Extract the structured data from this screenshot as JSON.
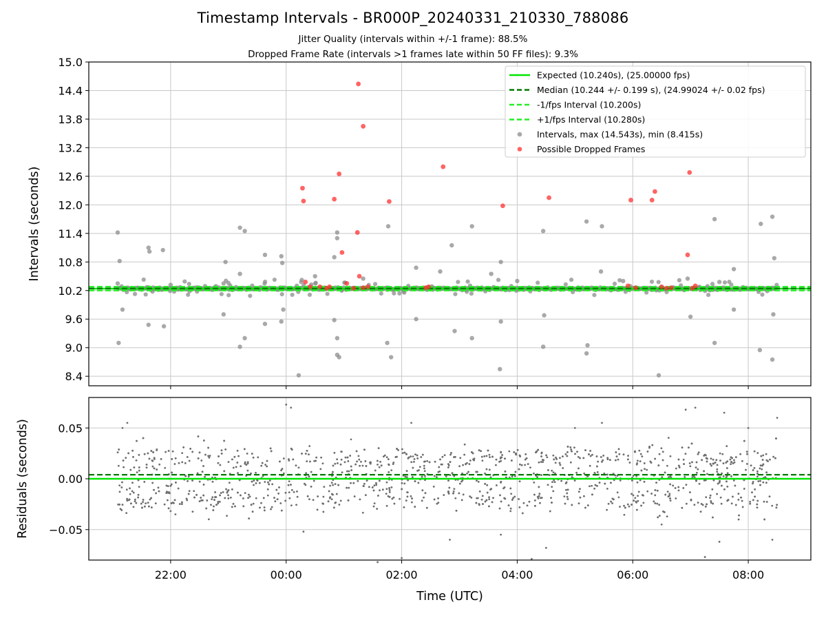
{
  "figure": {
    "title": "Timestamp Intervals - BR000P_20240331_210330_788086",
    "subtitle_1": "Jitter Quality (intervals within +/-1 frame): 88.5%",
    "subtitle_2": "Dropped Frame Rate (intervals >1 frames late within 50 FF files): 9.3%"
  },
  "colors": {
    "expected": "#00e600",
    "median": "#007a00",
    "interval_bounds": "#22ee22",
    "intervals": "#8c8c8c",
    "dropped": "#ff3030",
    "residuals": "#6e6e6e",
    "grid": "#c8c8c8"
  },
  "chart_data": [
    {
      "type": "scatter",
      "ylabel": "Intervals (seconds)",
      "ylim": [
        8.2,
        15.0
      ],
      "yticks": [
        "8.4",
        "9.0",
        "9.6",
        "10.2",
        "10.8",
        "11.4",
        "12.0",
        "12.6",
        "13.2",
        "13.8",
        "14.4",
        "15.0"
      ],
      "xlim": [
        "20:35",
        "09:05"
      ],
      "grid": true,
      "legend_placement": "top-right",
      "lines": [
        {
          "name": "Expected (10.240s), (25.00000 fps)",
          "y": 10.24,
          "style": "solid"
        },
        {
          "name": "Median (10.244 +/- 0.199 s), (24.99024 +/- 0.02 fps)",
          "y": 10.244,
          "style": "dashed"
        },
        {
          "name": "-1/fps Interval (10.200s)",
          "y": 10.2,
          "style": "dashed"
        },
        {
          "name": "+1/fps Interval (10.280s)",
          "y": 10.28,
          "style": "dashed"
        }
      ],
      "series": [
        {
          "name": "Intervals, max (14.543s), min (8.415s)",
          "points": [
            [
              "21:05",
              11.42
            ],
            [
              "21:07",
              10.82
            ],
            [
              "21:06",
              9.1
            ],
            [
              "21:10",
              9.8
            ],
            [
              "21:37",
              11.1
            ],
            [
              "21:38",
              11.02
            ],
            [
              "21:37",
              9.48
            ],
            [
              "21:52",
              11.05
            ],
            [
              "21:53",
              9.45
            ],
            [
              "22:55",
              10.35
            ],
            [
              "22:57",
              10.8
            ],
            [
              "22:55",
              9.7
            ],
            [
              "23:12",
              11.52
            ],
            [
              "23:17",
              11.45
            ],
            [
              "23:12",
              10.55
            ],
            [
              "23:12",
              9.02
            ],
            [
              "23:17",
              9.2
            ],
            [
              "23:38",
              10.95
            ],
            [
              "23:38",
              9.5
            ],
            [
              "23:55",
              10.92
            ],
            [
              "23:56",
              10.78
            ],
            [
              "23:55",
              9.55
            ],
            [
              "23:57",
              9.8
            ],
            [
              "00:13",
              8.42
            ],
            [
              "00:53",
              11.42
            ],
            [
              "00:53",
              11.3
            ],
            [
              "00:50",
              10.9
            ],
            [
              "00:50",
              9.58
            ],
            [
              "00:53",
              9.2
            ],
            [
              "00:53",
              8.85
            ],
            [
              "00:55",
              8.8
            ],
            [
              "01:46",
              11.55
            ],
            [
              "01:45",
              9.1
            ],
            [
              "01:49",
              8.8
            ],
            [
              "02:15",
              10.68
            ],
            [
              "02:15",
              9.6
            ],
            [
              "02:52",
              11.15
            ],
            [
              "02:55",
              9.35
            ],
            [
              "03:13",
              11.55
            ],
            [
              "03:13",
              9.2
            ],
            [
              "03:33",
              10.55
            ],
            [
              "03:43",
              10.8
            ],
            [
              "03:43",
              9.55
            ],
            [
              "03:42",
              8.55
            ],
            [
              "04:27",
              11.45
            ],
            [
              "04:28",
              9.68
            ],
            [
              "04:27",
              9.02
            ],
            [
              "05:12",
              11.65
            ],
            [
              "05:13",
              9.05
            ],
            [
              "05:12",
              8.88
            ],
            [
              "05:28",
              11.55
            ],
            [
              "05:27",
              10.6
            ],
            [
              "06:27",
              8.42
            ],
            [
              "06:57",
              10.45
            ],
            [
              "07:00",
              9.65
            ],
            [
              "07:25",
              11.7
            ],
            [
              "07:25",
              9.1
            ],
            [
              "07:45",
              10.65
            ],
            [
              "07:45",
              9.8
            ],
            [
              "08:13",
              11.6
            ],
            [
              "08:12",
              8.95
            ],
            [
              "08:25",
              11.75
            ],
            [
              "08:27",
              10.88
            ],
            [
              "08:26",
              9.7
            ],
            [
              "08:25",
              8.75
            ],
            [
              "21:05",
              10.35
            ],
            [
              "22:00",
              10.32
            ],
            [
              "23:00",
              10.36
            ],
            [
              "00:30",
              10.5
            ],
            [
              "01:20",
              10.45
            ],
            [
              "02:40",
              10.6
            ],
            [
              "04:00",
              10.4
            ],
            [
              "05:50",
              10.4
            ],
            [
              "07:30",
              10.38
            ]
          ]
        },
        {
          "name": "Possible Dropped Frames",
          "points": [
            [
              "00:17",
              12.35
            ],
            [
              "00:18",
              12.08
            ],
            [
              "00:50",
              12.12
            ],
            [
              "00:55",
              12.65
            ],
            [
              "00:58",
              11.0
            ],
            [
              "01:15",
              14.54
            ],
            [
              "01:20",
              13.65
            ],
            [
              "01:14",
              11.42
            ],
            [
              "01:47",
              12.07
            ],
            [
              "02:43",
              12.8
            ],
            [
              "03:45",
              11.98
            ],
            [
              "04:33",
              12.15
            ],
            [
              "05:58",
              12.1
            ],
            [
              "06:20",
              12.1
            ],
            [
              "06:23",
              12.28
            ],
            [
              "06:59",
              12.68
            ],
            [
              "06:57",
              10.95
            ],
            [
              "01:16",
              10.5
            ],
            [
              "01:03",
              10.35
            ],
            [
              "00:20",
              10.38
            ],
            [
              "00:25",
              10.28
            ],
            [
              "00:35",
              10.28
            ],
            [
              "00:42",
              10.25
            ],
            [
              "00:45",
              10.28
            ],
            [
              "01:10",
              10.25
            ],
            [
              "01:20",
              10.26
            ],
            [
              "01:25",
              10.28
            ],
            [
              "02:25",
              10.26
            ],
            [
              "02:28",
              10.28
            ],
            [
              "05:55",
              10.3
            ],
            [
              "06:03",
              10.26
            ],
            [
              "06:30",
              10.28
            ],
            [
              "06:35",
              10.25
            ],
            [
              "06:40",
              10.26
            ],
            [
              "07:02",
              10.25
            ],
            [
              "07:05",
              10.3
            ]
          ]
        }
      ]
    },
    {
      "type": "scatter",
      "xlabel": "Time (UTC)",
      "ylabel": "Residuals (seconds)",
      "ylim": [
        -0.08,
        0.08
      ],
      "yticks": [
        "−0.05",
        "0.00",
        "0.05"
      ],
      "xticks": [
        "22:00",
        "00:00",
        "02:00",
        "04:00",
        "06:00",
        "08:00"
      ],
      "grid": true,
      "lines": [
        {
          "name": "Expected",
          "y": 0.0,
          "style": "solid"
        },
        {
          "name": "Median",
          "y": 0.004,
          "style": "dashed"
        }
      ],
      "time_range": [
        "21:05",
        "08:30"
      ],
      "point_count": 2600,
      "residual_bands": [
        0.02,
        0.0,
        -0.02
      ],
      "outliers": [
        [
          "21:10",
          0.05
        ],
        [
          "21:15",
          0.055
        ],
        [
          "22:05",
          -0.035
        ],
        [
          "00:00",
          0.073
        ],
        [
          "00:05",
          0.07
        ],
        [
          "00:18",
          -0.052
        ],
        [
          "01:35",
          -0.082
        ],
        [
          "02:00",
          -0.078
        ],
        [
          "02:10",
          0.055
        ],
        [
          "02:50",
          -0.06
        ],
        [
          "03:43",
          -0.055
        ],
        [
          "04:15",
          -0.079
        ],
        [
          "04:30",
          -0.068
        ],
        [
          "05:00",
          0.05
        ],
        [
          "05:28",
          0.055
        ],
        [
          "06:30",
          -0.045
        ],
        [
          "06:55",
          0.068
        ],
        [
          "07:05",
          0.07
        ],
        [
          "07:15",
          -0.077
        ],
        [
          "07:30",
          -0.062
        ],
        [
          "07:35",
          0.065
        ],
        [
          "08:25",
          -0.06
        ],
        [
          "08:30",
          0.06
        ],
        [
          "08:00",
          0.05
        ]
      ]
    }
  ]
}
